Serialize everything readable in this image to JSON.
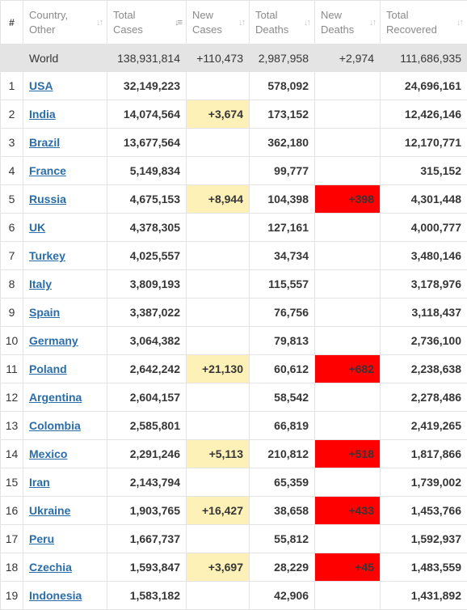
{
  "header": {
    "rank": "#",
    "country": [
      "Country,",
      "Other"
    ],
    "total_cases": [
      "Total",
      "Cases"
    ],
    "new_cases": [
      "New",
      "Cases"
    ],
    "total_deaths": [
      "Total",
      "Deaths"
    ],
    "new_deaths": [
      "New",
      "Deaths"
    ],
    "total_recovered": [
      "Total",
      "Recovered"
    ]
  },
  "world": {
    "label": "World",
    "total_cases": "138,931,814",
    "new_cases": "+110,473",
    "total_deaths": "2,987,958",
    "new_deaths": "+2,974",
    "total_recovered": "111,686,935"
  },
  "rows": [
    {
      "rank": "1",
      "country": "USA",
      "total_cases": "32,149,223",
      "new_cases": "",
      "total_deaths": "578,092",
      "new_deaths": "",
      "total_recovered": "24,696,161"
    },
    {
      "rank": "2",
      "country": "India",
      "total_cases": "14,074,564",
      "new_cases": "+3,674",
      "total_deaths": "173,152",
      "new_deaths": "",
      "total_recovered": "12,426,146"
    },
    {
      "rank": "3",
      "country": "Brazil",
      "total_cases": "13,677,564",
      "new_cases": "",
      "total_deaths": "362,180",
      "new_deaths": "",
      "total_recovered": "12,170,771"
    },
    {
      "rank": "4",
      "country": "France",
      "total_cases": "5,149,834",
      "new_cases": "",
      "total_deaths": "99,777",
      "new_deaths": "",
      "total_recovered": "315,152"
    },
    {
      "rank": "5",
      "country": "Russia",
      "total_cases": "4,675,153",
      "new_cases": "+8,944",
      "total_deaths": "104,398",
      "new_deaths": "+398",
      "total_recovered": "4,301,448"
    },
    {
      "rank": "6",
      "country": "UK",
      "total_cases": "4,378,305",
      "new_cases": "",
      "total_deaths": "127,161",
      "new_deaths": "",
      "total_recovered": "4,000,777"
    },
    {
      "rank": "7",
      "country": "Turkey",
      "total_cases": "4,025,557",
      "new_cases": "",
      "total_deaths": "34,734",
      "new_deaths": "",
      "total_recovered": "3,480,146"
    },
    {
      "rank": "8",
      "country": "Italy",
      "total_cases": "3,809,193",
      "new_cases": "",
      "total_deaths": "115,557",
      "new_deaths": "",
      "total_recovered": "3,178,976"
    },
    {
      "rank": "9",
      "country": "Spain",
      "total_cases": "3,387,022",
      "new_cases": "",
      "total_deaths": "76,756",
      "new_deaths": "",
      "total_recovered": "3,118,437"
    },
    {
      "rank": "10",
      "country": "Germany",
      "total_cases": "3,064,382",
      "new_cases": "",
      "total_deaths": "79,813",
      "new_deaths": "",
      "total_recovered": "2,736,100"
    },
    {
      "rank": "11",
      "country": "Poland",
      "total_cases": "2,642,242",
      "new_cases": "+21,130",
      "total_deaths": "60,612",
      "new_deaths": "+682",
      "total_recovered": "2,238,638"
    },
    {
      "rank": "12",
      "country": "Argentina",
      "total_cases": "2,604,157",
      "new_cases": "",
      "total_deaths": "58,542",
      "new_deaths": "",
      "total_recovered": "2,278,486"
    },
    {
      "rank": "13",
      "country": "Colombia",
      "total_cases": "2,585,801",
      "new_cases": "",
      "total_deaths": "66,819",
      "new_deaths": "",
      "total_recovered": "2,419,265"
    },
    {
      "rank": "14",
      "country": "Mexico",
      "total_cases": "2,291,246",
      "new_cases": "+5,113",
      "total_deaths": "210,812",
      "new_deaths": "+518",
      "total_recovered": "1,817,866"
    },
    {
      "rank": "15",
      "country": "Iran",
      "total_cases": "2,143,794",
      "new_cases": "",
      "total_deaths": "65,359",
      "new_deaths": "",
      "total_recovered": "1,739,002"
    },
    {
      "rank": "16",
      "country": "Ukraine",
      "total_cases": "1,903,765",
      "new_cases": "+16,427",
      "total_deaths": "38,658",
      "new_deaths": "+433",
      "total_recovered": "1,453,766"
    },
    {
      "rank": "17",
      "country": "Peru",
      "total_cases": "1,667,737",
      "new_cases": "",
      "total_deaths": "55,812",
      "new_deaths": "",
      "total_recovered": "1,592,937"
    },
    {
      "rank": "18",
      "country": "Czechia",
      "total_cases": "1,593,847",
      "new_cases": "+3,697",
      "total_deaths": "28,229",
      "new_deaths": "+45",
      "total_recovered": "1,483,559"
    },
    {
      "rank": "19",
      "country": "Indonesia",
      "total_cases": "1,583,182",
      "new_cases": "",
      "total_deaths": "42,906",
      "new_deaths": "",
      "total_recovered": "1,431,892"
    }
  ],
  "colors": {
    "link": "#2a6da8",
    "new_cases_bg": "#fdf1b7",
    "new_deaths_bg": "#ff0000",
    "world_row_bg": "#e4e4e4"
  },
  "icons": {
    "sort": "sort-arrows-icon",
    "sort_active": "sort-desc-icon"
  }
}
